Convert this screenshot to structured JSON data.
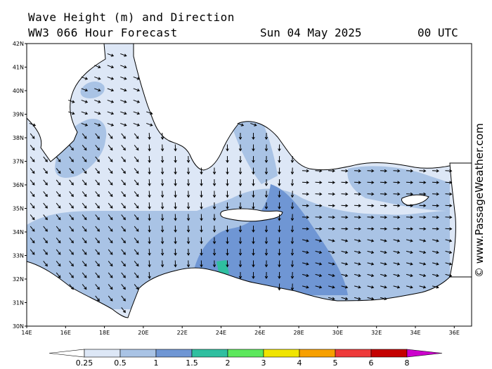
{
  "header": {
    "title": "Wave Height (m) and Direction",
    "subtitle": "WW3 066 Hour Forecast",
    "date": "Sun 04 May 2025",
    "time": "00 UTC"
  },
  "credit": "© www.PassageWeather.com",
  "axes": {
    "lat_labels": [
      "42N",
      "41N",
      "40N",
      "39N",
      "38N",
      "37N",
      "36N",
      "35N",
      "34N",
      "33N",
      "32N",
      "31N",
      "30N"
    ],
    "lon_labels": [
      "14E",
      "16E",
      "18E",
      "20E",
      "22E",
      "24E",
      "26E",
      "28E",
      "30E",
      "32E",
      "34E",
      "36E"
    ]
  },
  "legend": {
    "ticks": [
      "0.25",
      "0.5",
      "1",
      "1.5",
      "2",
      "3",
      "4",
      "5",
      "6",
      "8"
    ],
    "colors": [
      "#ffffff",
      "#dde7f6",
      "#a9c3e5",
      "#6f96d4",
      "#2fbfa0",
      "#5ce85c",
      "#f0e400",
      "#f7a000",
      "#ee3a3a",
      "#c40000",
      "#cc00cc"
    ]
  },
  "colors": {
    "land": "#ffffff",
    "coast": "#000000",
    "frame": "#000000",
    "low": "#dde7f6",
    "mid": "#a9c3e5",
    "high": "#6f96d4",
    "peak": "#2fbfa0"
  }
}
